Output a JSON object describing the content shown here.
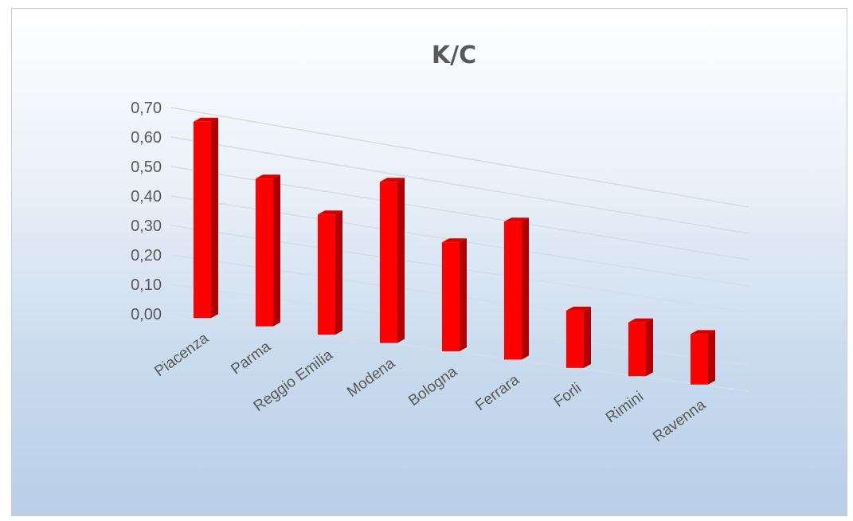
{
  "chart_data": {
    "type": "bar",
    "title": "K/C",
    "categories": [
      "Piacenza",
      "Parma",
      "Reggio Emilia",
      "Modena",
      "Bologna",
      "Ferrara",
      "Forli",
      "Rimini",
      "Ravenna"
    ],
    "values": [
      0.67,
      0.51,
      0.42,
      0.57,
      0.39,
      0.5,
      0.21,
      0.2,
      0.19
    ],
    "ylim": [
      0,
      0.7
    ],
    "yticks": [
      "0,00",
      "0,10",
      "0,20",
      "0,30",
      "0,40",
      "0,50",
      "0,60",
      "0,70"
    ],
    "grid": true,
    "legend": "none",
    "style": "3d-perspective",
    "colors": {
      "bar_front": "#ff0000",
      "bar_side": "#b00000",
      "bar_top": "#d40000"
    }
  }
}
